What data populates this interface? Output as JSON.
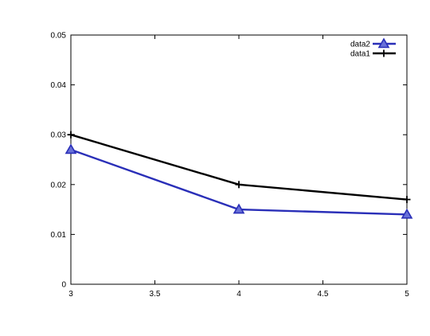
{
  "chart_data": {
    "type": "line",
    "title": "",
    "xlabel": "",
    "ylabel": "",
    "xlim": [
      3,
      5
    ],
    "ylim": [
      0,
      0.05
    ],
    "x_ticks": [
      3,
      3.5,
      4,
      4.5,
      5
    ],
    "x_tick_labels": [
      "3",
      "3.5",
      "4",
      "4.5",
      "5"
    ],
    "y_ticks": [
      0,
      0.01,
      0.02,
      0.03,
      0.04,
      0.05
    ],
    "y_tick_labels": [
      "0",
      "0.01",
      "0.02",
      "0.03",
      "0.04",
      "0.05"
    ],
    "grid": false,
    "legend_position": "top-right",
    "series": [
      {
        "name": "data2",
        "x": [
          3,
          4,
          5
        ],
        "values": [
          0.027,
          0.015,
          0.014
        ],
        "color": "#2a2fb8",
        "marker": "triangle"
      },
      {
        "name": "data1",
        "x": [
          3,
          4,
          5
        ],
        "values": [
          0.03,
          0.02,
          0.017
        ],
        "color": "#000000",
        "marker": "plus"
      }
    ]
  }
}
